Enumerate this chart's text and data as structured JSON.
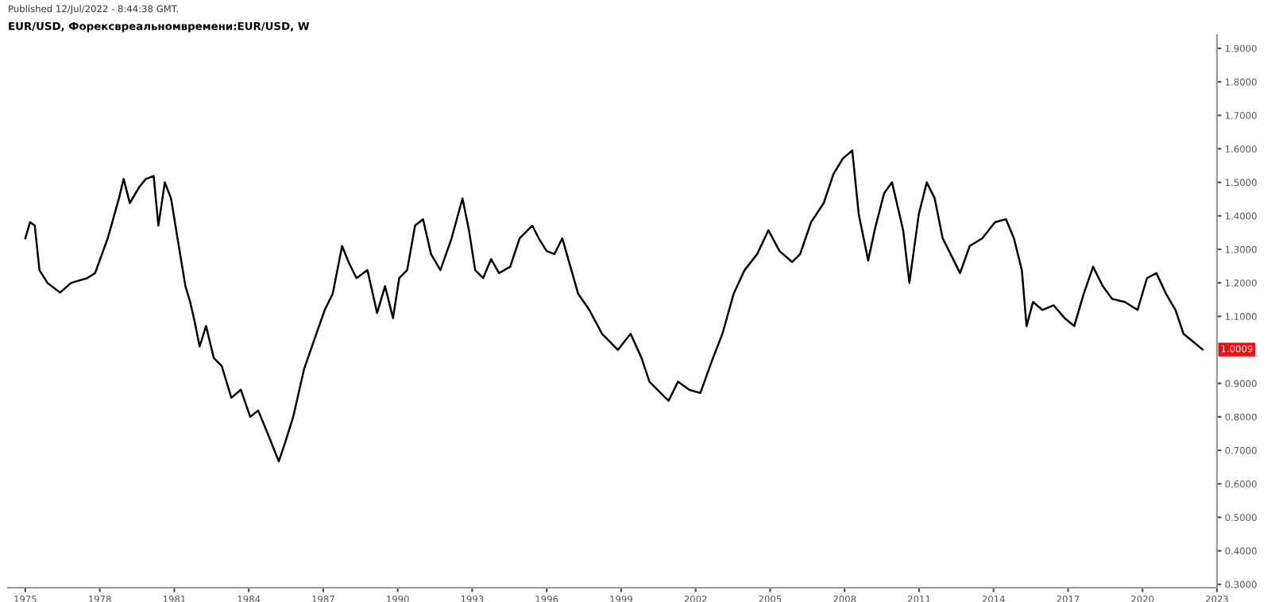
{
  "chart_data": {
    "type": "line",
    "title": "EUR/USD, Форексвреальномвремени:EUR/USD, W",
    "annotations": [
      "Published 12/Jul/2022 - 8:44:38 GMT.",
      {
        "text": "1.0009",
        "y": 1.0009
      }
    ],
    "x": [
      1975.0,
      1975.19,
      1975.38,
      1975.57,
      1975.89,
      1976.4,
      1976.85,
      1977.49,
      1977.81,
      1978.32,
      1978.77,
      1978.96,
      1979.21,
      1979.59,
      1979.85,
      1980.17,
      1980.36,
      1980.62,
      1980.87,
      1981.13,
      1981.45,
      1981.64,
      1981.83,
      1982.02,
      1982.28,
      1982.59,
      1982.91,
      1983.3,
      1983.68,
      1984.06,
      1984.38,
      1984.83,
      1985.21,
      1985.47,
      1985.79,
      1986.23,
      1986.61,
      1987.06,
      1987.38,
      1987.76,
      1988.02,
      1988.34,
      1988.78,
      1989.17,
      1989.49,
      1989.81,
      1990.06,
      1990.38,
      1990.7,
      1991.02,
      1991.34,
      1991.72,
      1992.17,
      1992.61,
      1992.87,
      1993.12,
      1993.44,
      1993.76,
      1994.08,
      1994.53,
      1994.91,
      1995.42,
      1995.68,
      1996.0,
      1996.31,
      1996.63,
      1997.27,
      1997.72,
      1998.23,
      1998.87,
      1999.38,
      1999.82,
      2000.14,
      2000.65,
      2000.91,
      2001.29,
      2001.74,
      2002.19,
      2002.7,
      2003.08,
      2003.53,
      2003.97,
      2004.48,
      2004.93,
      2005.38,
      2005.89,
      2006.21,
      2006.65,
      2007.16,
      2007.55,
      2007.93,
      2008.31,
      2008.57,
      2008.95,
      2009.21,
      2009.59,
      2009.91,
      2010.36,
      2010.61,
      2010.99,
      2011.31,
      2011.63,
      2011.95,
      2012.27,
      2012.65,
      2013.04,
      2013.55,
      2014.06,
      2014.5,
      2014.82,
      2015.14,
      2015.33,
      2015.59,
      2015.97,
      2016.42,
      2016.86,
      2017.25,
      2017.63,
      2018.01,
      2018.4,
      2018.78,
      2019.29,
      2019.8,
      2020.18,
      2020.56,
      2020.95,
      2021.33,
      2021.65,
      2022.42
    ],
    "series": [
      {
        "color": "#000000",
        "values": [
          1.333,
          1.381,
          1.371,
          1.238,
          1.2,
          1.171,
          1.2,
          1.214,
          1.229,
          1.333,
          1.452,
          1.51,
          1.438,
          1.486,
          1.51,
          1.519,
          1.371,
          1.5,
          1.452,
          1.333,
          1.19,
          1.143,
          1.081,
          1.01,
          1.071,
          0.976,
          0.952,
          0.857,
          0.881,
          0.8,
          0.819,
          0.738,
          0.667,
          0.724,
          0.8,
          0.943,
          1.024,
          1.119,
          1.167,
          1.31,
          1.262,
          1.214,
          1.238,
          1.11,
          1.19,
          1.095,
          1.214,
          1.238,
          1.371,
          1.39,
          1.286,
          1.238,
          1.333,
          1.452,
          1.357,
          1.238,
          1.214,
          1.271,
          1.229,
          1.248,
          1.333,
          1.371,
          1.333,
          1.295,
          1.286,
          1.333,
          1.167,
          1.119,
          1.048,
          1.0,
          1.048,
          0.976,
          0.905,
          0.867,
          0.848,
          0.905,
          0.881,
          0.871,
          0.976,
          1.048,
          1.167,
          1.238,
          1.286,
          1.357,
          1.295,
          1.262,
          1.286,
          1.381,
          1.438,
          1.524,
          1.571,
          1.595,
          1.405,
          1.267,
          1.357,
          1.467,
          1.5,
          1.357,
          1.2,
          1.405,
          1.5,
          1.452,
          1.333,
          1.286,
          1.229,
          1.31,
          1.333,
          1.381,
          1.39,
          1.333,
          1.238,
          1.071,
          1.143,
          1.119,
          1.133,
          1.095,
          1.071,
          1.167,
          1.248,
          1.19,
          1.152,
          1.143,
          1.119,
          1.214,
          1.229,
          1.167,
          1.119,
          1.048,
          1.001
        ]
      }
    ],
    "xlim": [
      1974.3,
      2023.0
    ],
    "xticks": [
      1975,
      1978,
      1981,
      1984,
      1987,
      1990,
      1993,
      1996,
      1999,
      2002,
      2005,
      2008,
      2011,
      2014,
      2017,
      2020,
      2023
    ],
    "ylim": [
      0.29,
      1.94
    ],
    "yticks": [
      {
        "value": 0.3,
        "label": "0.3000"
      },
      {
        "value": 0.4,
        "label": "0.4000"
      },
      {
        "value": 0.5,
        "label": "0.5000"
      },
      {
        "value": 0.6,
        "label": "0.6000"
      },
      {
        "value": 0.7,
        "label": "0.7000"
      },
      {
        "value": 0.8,
        "label": "0.8000"
      },
      {
        "value": 0.9,
        "label": "0.9000"
      },
      {
        "value": 1.1,
        "label": "1.1000"
      },
      {
        "value": 1.2,
        "label": "1.2000"
      },
      {
        "value": 1.3,
        "label": "1.3000"
      },
      {
        "value": 1.4,
        "label": "1.4000"
      },
      {
        "value": 1.5,
        "label": "1.5000"
      },
      {
        "value": 1.6,
        "label": "1.6000"
      },
      {
        "value": 1.7,
        "label": "1.7000"
      },
      {
        "value": 1.8,
        "label": "1.8000"
      },
      {
        "value": 1.9,
        "label": "1.9000"
      }
    ],
    "grid": false,
    "legend": false,
    "marker": "none",
    "line_style": "solid"
  }
}
